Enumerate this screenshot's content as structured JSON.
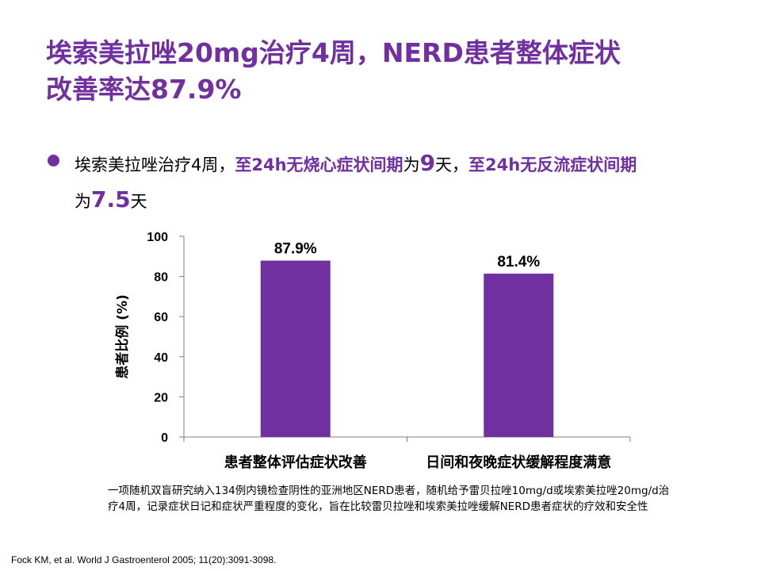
{
  "slide": {
    "title_line1": "埃索美拉唑20mg治疗4周，NERD患者整体症状",
    "title_line2": "改善率达87.9%",
    "bullet": {
      "p1": "埃索美拉唑治疗4周，",
      "h1": "至24h无烧心症状间期",
      "p2": "为",
      "n1": "9",
      "p3": "天，",
      "h2": "至24h无反流症状间期",
      "p4": "为",
      "n2": "7.5",
      "p5": "天"
    },
    "note": "一项随机双盲研究纳入134例内镜检查阴性的亚洲地区NERD患者，随机给予雷贝拉唑10mg/d或埃索美拉唑20mg/d治疗4周，记录症状日记和症状严重程度的变化，旨在比较雷贝拉唑和埃索美拉唑缓解NERD患者症状的疗效和安全性",
    "reference": "Fock KM, et al. World J Gastroenterol 2005; 11(20):3091-3098."
  },
  "colors": {
    "accent": "#7030a0",
    "bar": "#7030a0",
    "axis": "#7f7f7f"
  },
  "chart_data": {
    "type": "bar",
    "categories": [
      "患者整体评估症状改善",
      "日间和夜晚症状缓解程度满意"
    ],
    "values": [
      87.9,
      81.4
    ],
    "data_labels": [
      "87.9%",
      "81.4%"
    ],
    "ylabel": "患者比例 (%)",
    "ylim": [
      0,
      100
    ],
    "yticks": [
      "0",
      "20",
      "40",
      "60",
      "80",
      "100"
    ],
    "grid": false,
    "legend": "none"
  }
}
